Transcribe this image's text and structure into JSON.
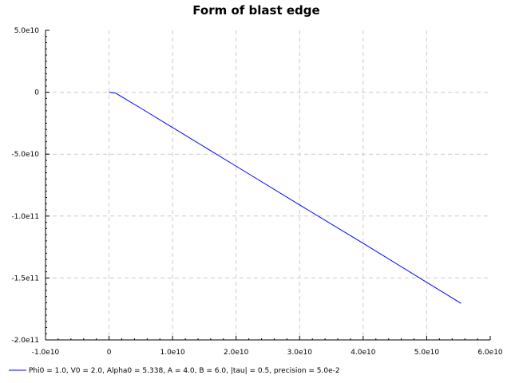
{
  "chart_data": {
    "type": "line",
    "title": "Form of blast edge",
    "xlabel": "",
    "ylabel": "",
    "xlim": [
      -10000000000,
      60000000000
    ],
    "ylim": [
      -200000000000,
      50000000000
    ],
    "x_ticks": [
      {
        "value": -10000000000,
        "label": "-1.0e10"
      },
      {
        "value": 0,
        "label": "0"
      },
      {
        "value": 10000000000,
        "label": "1.0e10"
      },
      {
        "value": 20000000000,
        "label": "2.0e10"
      },
      {
        "value": 30000000000,
        "label": "3.0e10"
      },
      {
        "value": 40000000000,
        "label": "4.0e10"
      },
      {
        "value": 50000000000,
        "label": "5.0e10"
      },
      {
        "value": 60000000000,
        "label": "6.0e10"
      }
    ],
    "y_ticks": [
      {
        "value": 50000000000,
        "label": "5.0e10"
      },
      {
        "value": 0,
        "label": "0"
      },
      {
        "value": -50000000000,
        "label": "-5.0e10"
      },
      {
        "value": -100000000000,
        "label": "-1.0e11"
      },
      {
        "value": -150000000000,
        "label": "-1.5e11"
      },
      {
        "value": -200000000000,
        "label": "-2.0e11"
      }
    ],
    "grid": true,
    "legend_position": "bottom",
    "series": [
      {
        "name": "Phi0 = 1.0, V0 = 2.0, Alpha0 = 5.338, A = 4.0, B = 6.0, |tau| = 0.5, precision = 5.0e-2",
        "color": "#0000ff",
        "x": [
          0,
          1000000000,
          5000000000,
          10000000000,
          20000000000,
          30000000000,
          40000000000,
          50000000000,
          55400000000
        ],
        "y": [
          0,
          -600000000,
          -12900000000,
          -28500000000,
          -59700000000,
          -91000000000,
          -122000000000,
          -153500000000,
          -170500000000
        ]
      }
    ]
  }
}
